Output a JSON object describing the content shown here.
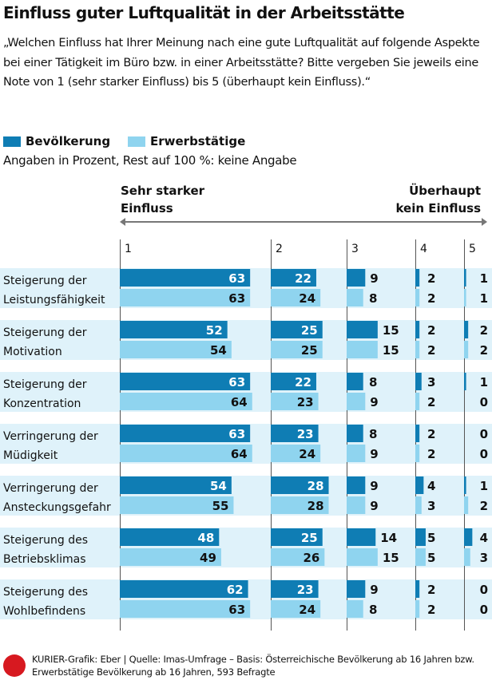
{
  "title": "Einfluss guter Luftqualität in der Arbeitsstätte",
  "question": "„Welchen Einfluss hat Ihrer Meinung nach eine gute Luftqualität auf folgende Aspekte bei einer Tätigkeit im Büro bzw. in einer Arbeitsstätte? Bitte vergeben Sie jeweils eine Note von 1 (sehr starker Einfluss) bis 5 (überhaupt kein Einfluss).“",
  "note": "Angaben in Prozent, Rest auf 100 %: keine Angabe",
  "scale_left": "Sehr starker Einfluss",
  "scale_right": "Überhaupt kein Einfluss",
  "footer": "KURIER-Grafik: Eber | Quelle: Imas-Umfrage – Basis: Österreichische Bevölkerung ab 16 Jahren bzw. Erwerbstätige Bevölkerung ab 16 Jahren, 593 Befragte",
  "logo": "K",
  "chart_data": {
    "type": "bar",
    "subtype": "grouped horizontal, split by rating",
    "columns": [
      "1",
      "2",
      "3",
      "4",
      "5"
    ],
    "categories": [
      "Steigerung der Leistungsfähigkeit",
      "Steigerung der Motivation",
      "Steigerung der Konzentration",
      "Verringerung der Müdigkeit",
      "Verringerung der Ansteckungsgefahr",
      "Steigerung des Betriebsklimas",
      "Steigerung des Wohlbefindens"
    ],
    "series": [
      {
        "name": "Bevölkerung",
        "color": "#0f7db4",
        "values": [
          [
            63,
            22,
            9,
            2,
            1
          ],
          [
            52,
            25,
            15,
            2,
            2
          ],
          [
            63,
            22,
            8,
            3,
            1
          ],
          [
            63,
            23,
            8,
            2,
            0
          ],
          [
            54,
            28,
            9,
            4,
            1
          ],
          [
            48,
            25,
            14,
            5,
            4
          ],
          [
            62,
            23,
            9,
            2,
            0
          ]
        ]
      },
      {
        "name": "Erwerbstätige",
        "color": "#8fd4ef",
        "values": [
          [
            63,
            24,
            8,
            2,
            1
          ],
          [
            54,
            25,
            15,
            2,
            2
          ],
          [
            64,
            23,
            9,
            2,
            0
          ],
          [
            64,
            24,
            9,
            2,
            0
          ],
          [
            55,
            28,
            9,
            3,
            2
          ],
          [
            49,
            26,
            15,
            5,
            3
          ],
          [
            63,
            24,
            8,
            2,
            0
          ]
        ]
      }
    ],
    "band_color": "#dff2fa"
  }
}
